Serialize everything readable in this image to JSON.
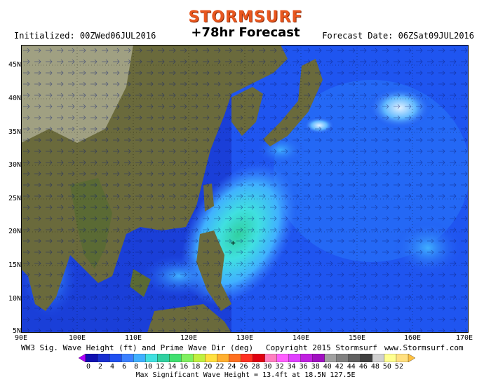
{
  "brand": "STORMSURF",
  "initialized": "Initialized: 00ZWed06JUL2016",
  "forecast_title": "+78hr Forecast",
  "forecast_date": "Forecast Date: 06ZSat09JUL2016",
  "lat_labels": [
    "45N",
    "40N",
    "35N",
    "30N",
    "25N",
    "20N",
    "15N",
    "10N",
    "5N"
  ],
  "lon_labels": [
    "90E",
    "100E",
    "110E",
    "120E",
    "130E",
    "140E",
    "150E",
    "160E",
    "170E"
  ],
  "footer_left": "WW3 Sig. Wave Height (ft) and Prime Wave Dir (deg)",
  "footer_center": "Copyright 2015 Stormsurf",
  "footer_right": "www.Stormsurf.com",
  "scale_values": [
    "0",
    "2",
    "4",
    "6",
    "8",
    "10",
    "12",
    "14",
    "16",
    "18",
    "20",
    "22",
    "24",
    "26",
    "28",
    "30",
    "32",
    "34",
    "36",
    "38",
    "40",
    "42",
    "44",
    "46",
    "48",
    "50",
    "52"
  ],
  "scale_colors": [
    "#b000ff",
    "#1010b0",
    "#1a30d0",
    "#2050f0",
    "#3c80ff",
    "#40b0ff",
    "#40e0e0",
    "#30d0a0",
    "#40e070",
    "#80f060",
    "#c0f040",
    "#ffe040",
    "#ffb030",
    "#ff7020",
    "#ff3020",
    "#e00010",
    "#ff80c0",
    "#ff60ff",
    "#e040ff",
    "#c020e0",
    "#a010c0",
    "#a0a0a0",
    "#808080",
    "#606060",
    "#404040",
    "#d0d0d0",
    "#ffff90",
    "#ffe080",
    "#ffc040"
  ],
  "max_line": "Max Significant Wave Height = 13.4ft at 18.5N 127.5E",
  "colors": {
    "brand": "#e8571f",
    "land": "#6a6a3c",
    "ocean_deep": "#1a2fb8"
  }
}
